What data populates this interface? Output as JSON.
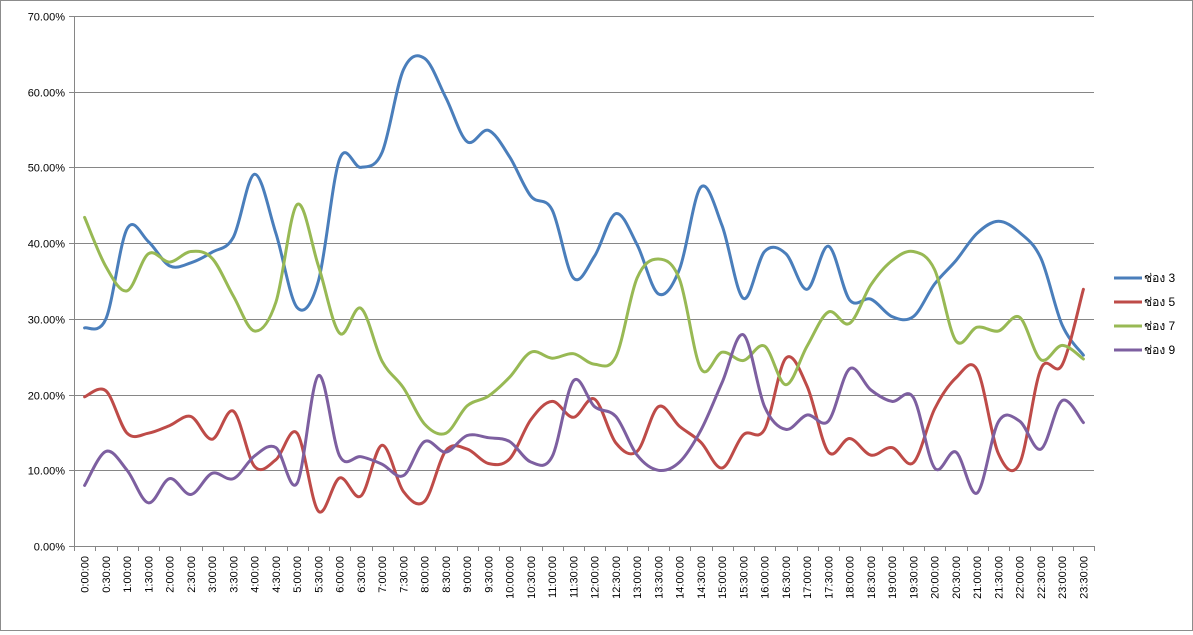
{
  "chart_data": {
    "type": "line",
    "title": "",
    "xlabel": "",
    "ylabel": "",
    "ylim": [
      0,
      70
    ],
    "y_tick_values": [
      0,
      10,
      20,
      30,
      40,
      50,
      60,
      70
    ],
    "y_tick_labels": [
      "0.00%",
      "10.00%",
      "20.00%",
      "30.00%",
      "40.00%",
      "50.00%",
      "60.00%",
      "70.00%"
    ],
    "grid": "horizontal",
    "legend_position": "right",
    "smooth": true,
    "categories": [
      "0:00:00",
      "0:30:00",
      "1:00:00",
      "1:30:00",
      "2:00:00",
      "2:30:00",
      "3:00:00",
      "3:30:00",
      "4:00:00",
      "4:30:00",
      "5:00:00",
      "5:30:00",
      "6:00:00",
      "6:30:00",
      "7:00:00",
      "7:30:00",
      "8:00:00",
      "8:30:00",
      "9:00:00",
      "9:30:00",
      "10:00:00",
      "10:30:00",
      "11:00:00",
      "11:30:00",
      "12:00:00",
      "12:30:00",
      "13:00:00",
      "13:30:00",
      "14:00:00",
      "14:30:00",
      "15:00:00",
      "15:30:00",
      "16:00:00",
      "16:30:00",
      "17:00:00",
      "17:30:00",
      "18:00:00",
      "18:30:00",
      "19:00:00",
      "19:30:00",
      "20:00:00",
      "20:30:00",
      "21:00:00",
      "21:30:00",
      "22:00:00",
      "22:30:00",
      "23:00:00",
      "23:30:00"
    ],
    "series": [
      {
        "name": "ช่อง 3",
        "color": "#4a7ebb",
        "values": [
          28.8,
          30.0,
          41.9,
          40.2,
          37.0,
          37.4,
          38.8,
          40.8,
          49.1,
          41.3,
          31.5,
          35.0,
          51.1,
          50.0,
          52.0,
          62.9,
          64.4,
          59.2,
          53.4,
          54.9,
          51.4,
          46.2,
          44.4,
          35.4,
          38.3,
          43.9,
          39.8,
          33.3,
          36.6,
          47.4,
          42.3,
          32.7,
          38.9,
          38.6,
          33.9,
          39.6,
          32.5,
          32.6,
          30.3,
          30.3,
          34.6,
          37.7,
          41.3,
          42.9,
          41.4,
          38.0,
          29.2,
          25.2
        ]
      },
      {
        "name": "ช่อง 5",
        "color": "#be4b48",
        "values": [
          19.7,
          20.5,
          14.9,
          14.9,
          15.9,
          17.1,
          14.1,
          17.8,
          10.5,
          11.4,
          14.9,
          4.6,
          9.0,
          6.6,
          13.3,
          7.2,
          5.9,
          12.6,
          12.8,
          10.9,
          11.5,
          16.7,
          19.1,
          17.0,
          19.4,
          13.6,
          12.5,
          18.4,
          15.8,
          13.7,
          10.3,
          14.7,
          15.4,
          24.8,
          21.1,
          12.4,
          14.2,
          12.0,
          13.0,
          11.0,
          18.1,
          22.2,
          23.3,
          12.2,
          10.9,
          23.4,
          23.9,
          33.9
        ]
      },
      {
        "name": "ช่อง 7",
        "color": "#98b954",
        "values": [
          43.4,
          36.9,
          33.7,
          38.6,
          37.5,
          38.9,
          38.0,
          33.0,
          28.4,
          32.2,
          45.1,
          37.0,
          28.1,
          31.4,
          24.4,
          20.9,
          16.1,
          14.9,
          18.5,
          19.8,
          22.3,
          25.6,
          24.8,
          25.4,
          24.0,
          25.0,
          35.4,
          37.9,
          35.2,
          23.4,
          25.6,
          24.5,
          26.4,
          21.3,
          26.4,
          30.9,
          29.4,
          34.5,
          37.7,
          38.9,
          36.5,
          27.1,
          28.9,
          28.4,
          30.2,
          24.6,
          26.5,
          24.7
        ]
      },
      {
        "name": "ช่อง 9",
        "color": "#7d5fa0",
        "values": [
          8.0,
          12.5,
          10.0,
          5.7,
          8.9,
          6.8,
          9.6,
          8.9,
          11.9,
          13.0,
          8.3,
          22.5,
          11.9,
          11.8,
          10.8,
          9.3,
          13.8,
          12.4,
          14.6,
          14.3,
          13.8,
          11.1,
          11.8,
          21.8,
          18.4,
          17.1,
          12.0,
          10.0,
          11.1,
          15.3,
          21.6,
          27.9,
          18.4,
          15.4,
          17.3,
          16.5,
          23.4,
          20.6,
          19.1,
          19.6,
          10.3,
          12.4,
          7.0,
          16.4,
          16.5,
          12.8,
          19.2,
          16.3
        ]
      }
    ]
  }
}
